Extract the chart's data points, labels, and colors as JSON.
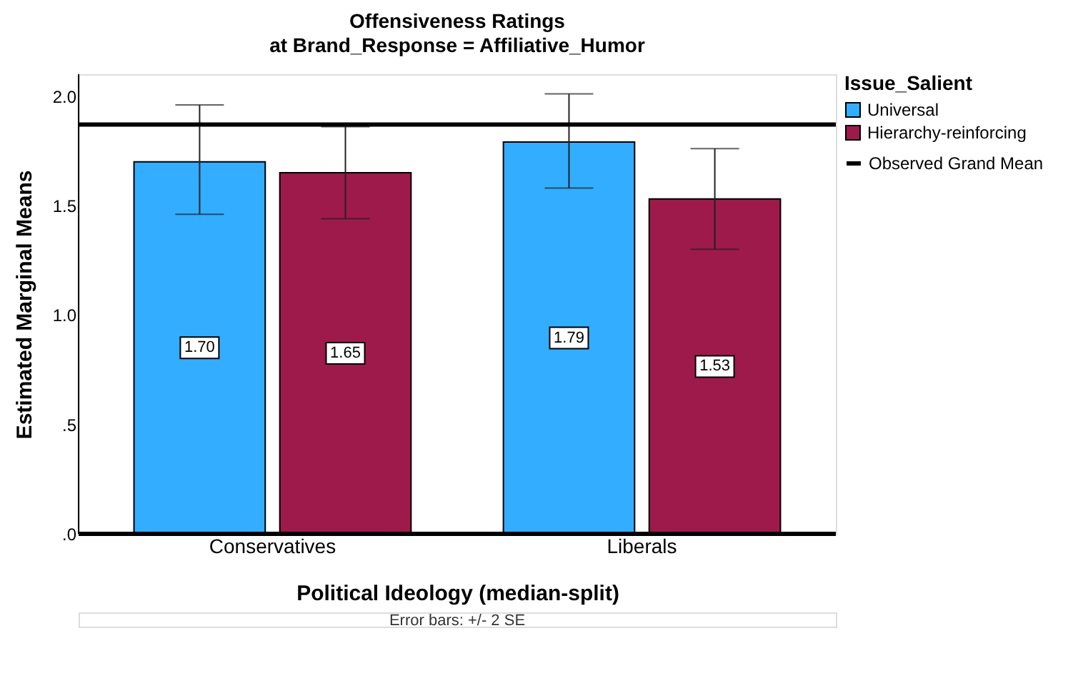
{
  "chart_data": {
    "type": "bar",
    "title": "Offensiveness Ratings",
    "subtitle": "at Brand_Response = Affiliative_Humor",
    "xlabel": "Political Ideology (median-split)",
    "ylabel": "Estimated Marginal Means",
    "legend_title": "Issue_Salient",
    "categories": [
      "Conservatives",
      "Liberals"
    ],
    "series": [
      {
        "name": "Universal",
        "color": "#33adff",
        "values": [
          1.7,
          1.79
        ],
        "value_labels": [
          "1.70",
          "1.79"
        ],
        "errors": [
          [
            1.46,
            1.96
          ],
          [
            1.58,
            2.01
          ]
        ]
      },
      {
        "name": "Hierarchy-reinforcing",
        "color": "#9e1a4a",
        "values": [
          1.65,
          1.53
        ],
        "value_labels": [
          "1.65",
          "1.53"
        ],
        "errors": [
          [
            1.44,
            1.86
          ],
          [
            1.3,
            1.76
          ]
        ]
      }
    ],
    "ylim": [
      0,
      2.1
    ],
    "yticks": [
      {
        "value": 0,
        "label": ".0"
      },
      {
        "value": 0.5,
        "label": ".5"
      },
      {
        "value": 1,
        "label": "1.0"
      },
      {
        "value": 1.5,
        "label": "1.5"
      },
      {
        "value": 2,
        "label": "2.0"
      }
    ],
    "ref_lines": [
      {
        "axis": "y",
        "value": 1.87,
        "label": "Observed Grand Mean",
        "color": "#000000"
      }
    ],
    "grid": false,
    "legend": "right",
    "annotations": [
      "Error bars: +/- 2 SE"
    ]
  }
}
